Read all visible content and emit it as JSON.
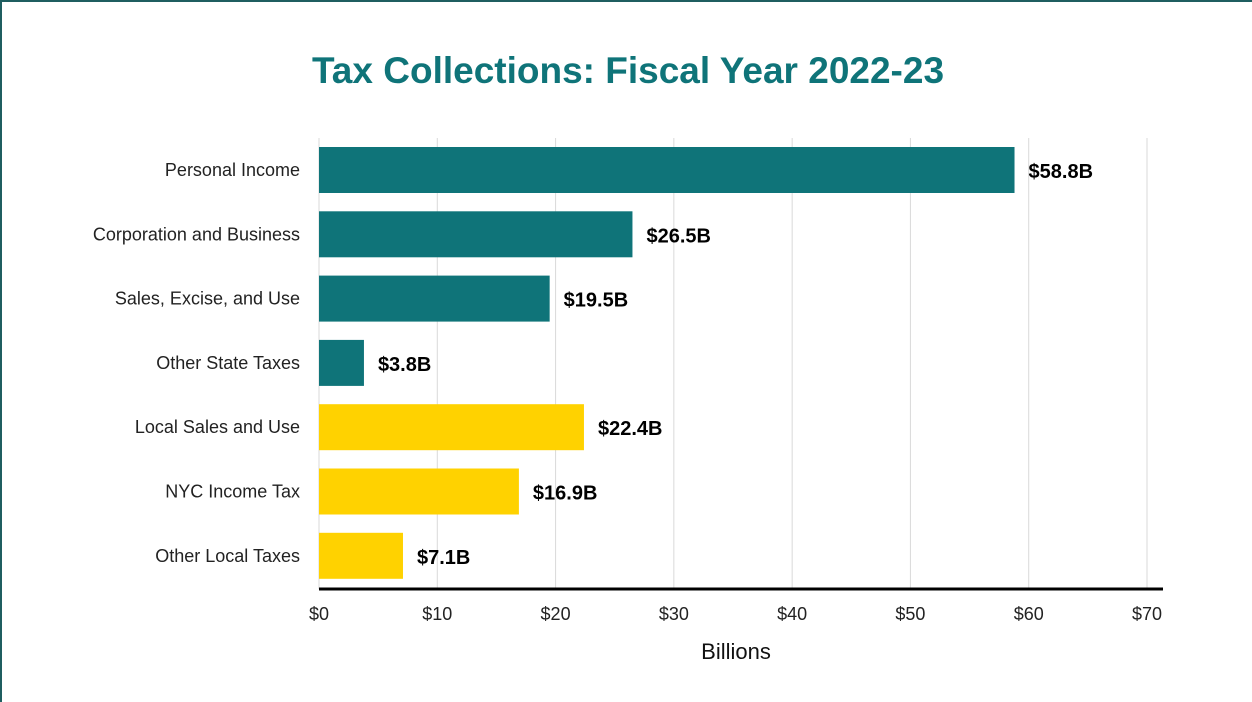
{
  "chart_data": {
    "type": "bar",
    "orientation": "horizontal",
    "title": "Tax Collections: Fiscal Year 2022-23",
    "xlabel": "Billions",
    "ylabel": "",
    "categories": [
      "Personal Income",
      "Corporation and Business",
      "Sales, Excise, and Use",
      "Other State Taxes",
      "Local Sales and Use",
      "NYC Income Tax",
      "Other Local Taxes"
    ],
    "values": [
      58.8,
      26.5,
      19.5,
      3.8,
      22.4,
      16.9,
      7.1
    ],
    "data_labels": [
      "$58.8B",
      "$26.5B",
      "$19.5B",
      "$3.8B",
      "$22.4B",
      "$16.9B",
      "$7.1B"
    ],
    "bar_colors": [
      "#0f7479",
      "#0f7479",
      "#0f7479",
      "#0f7479",
      "#ffd200",
      "#ffd200",
      "#ffd200"
    ],
    "xlim": [
      0,
      70
    ],
    "ticks": [
      0,
      10,
      20,
      30,
      40,
      50,
      60,
      70
    ],
    "tick_labels": [
      "$0",
      "$10",
      "$20",
      "$30",
      "$40",
      "$50",
      "$60",
      "$70"
    ],
    "grid": true,
    "legend": "none"
  },
  "colors": {
    "title": "#0f7479",
    "state": "#0f7479",
    "local": "#ffd200",
    "gridline": "#d9d9d9",
    "axis": "#000000",
    "frame": "#1f5e60"
  }
}
